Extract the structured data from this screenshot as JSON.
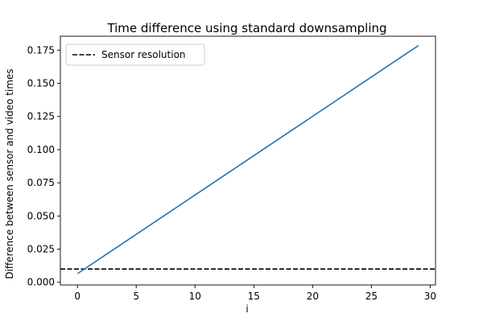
{
  "chart_data": {
    "type": "line",
    "title": "Time difference using standard downsampling",
    "xlabel": "i",
    "ylabel": "Difference between sensor and video times",
    "xlim": [
      -1.45,
      30.45
    ],
    "ylim": [
      -0.002,
      0.1855
    ],
    "xticks": [
      0,
      5,
      10,
      15,
      20,
      25,
      30
    ],
    "yticks": [
      0.0,
      0.025,
      0.05,
      0.075,
      0.1,
      0.125,
      0.15,
      0.175
    ],
    "xtick_labels": [
      "0",
      "5",
      "10",
      "15",
      "20",
      "25",
      "30"
    ],
    "ytick_labels": [
      "0.000",
      "0.025",
      "0.050",
      "0.075",
      "0.100",
      "0.125",
      "0.150",
      "0.175"
    ],
    "grid": false,
    "legend_position": "top-left",
    "series": [
      {
        "type": "line",
        "color": "#1f77b4",
        "x": [
          0,
          29
        ],
        "y": [
          0.0065,
          0.1785
        ]
      }
    ],
    "reference_lines": [
      {
        "name": "Sensor resolution",
        "orientation": "horizontal",
        "y": 0.01,
        "style": "dashed",
        "color": "#000000"
      }
    ]
  }
}
